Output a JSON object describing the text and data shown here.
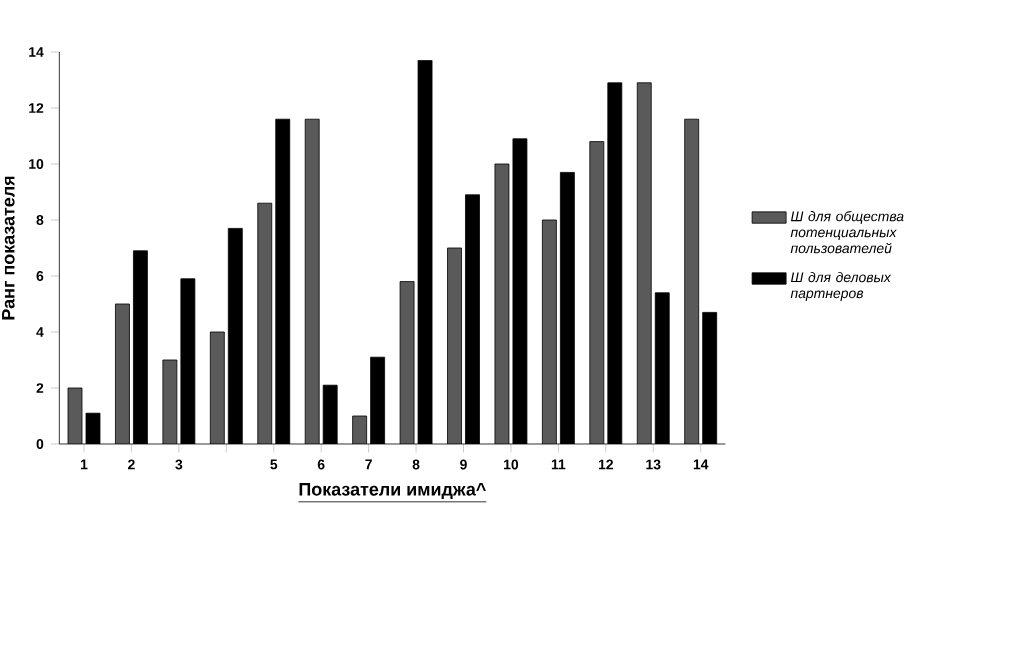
{
  "chart_data": {
    "type": "bar",
    "xlabel": "Показатели имиджа^",
    "ylabel": "Ранг показателя",
    "categories": [
      "1",
      "2",
      "3",
      null,
      "5",
      "6",
      "7",
      "8",
      "9",
      "10",
      "11",
      "12",
      "13",
      "14"
    ],
    "series": [
      {
        "name": "Ш для общества потенциальных пользователей",
        "color": "#5a5a5a",
        "values": [
          2,
          5,
          3,
          4,
          8.6,
          11.6,
          1,
          5.8,
          7,
          10,
          8,
          10.8,
          12.9,
          11.6
        ]
      },
      {
        "name": "Ш для деловых партнеров",
        "color": "#000000",
        "values": [
          1.1,
          6.9,
          5.9,
          7.7,
          11.6,
          2.1,
          3.1,
          13.7,
          8.9,
          10.9,
          9.7,
          12.9,
          5.4,
          4.7
        ]
      }
    ],
    "ylim": [
      0,
      14
    ],
    "yticks": [
      0,
      2,
      4,
      6,
      8,
      10,
      12,
      14
    ],
    "grid": false,
    "legend": "right"
  }
}
